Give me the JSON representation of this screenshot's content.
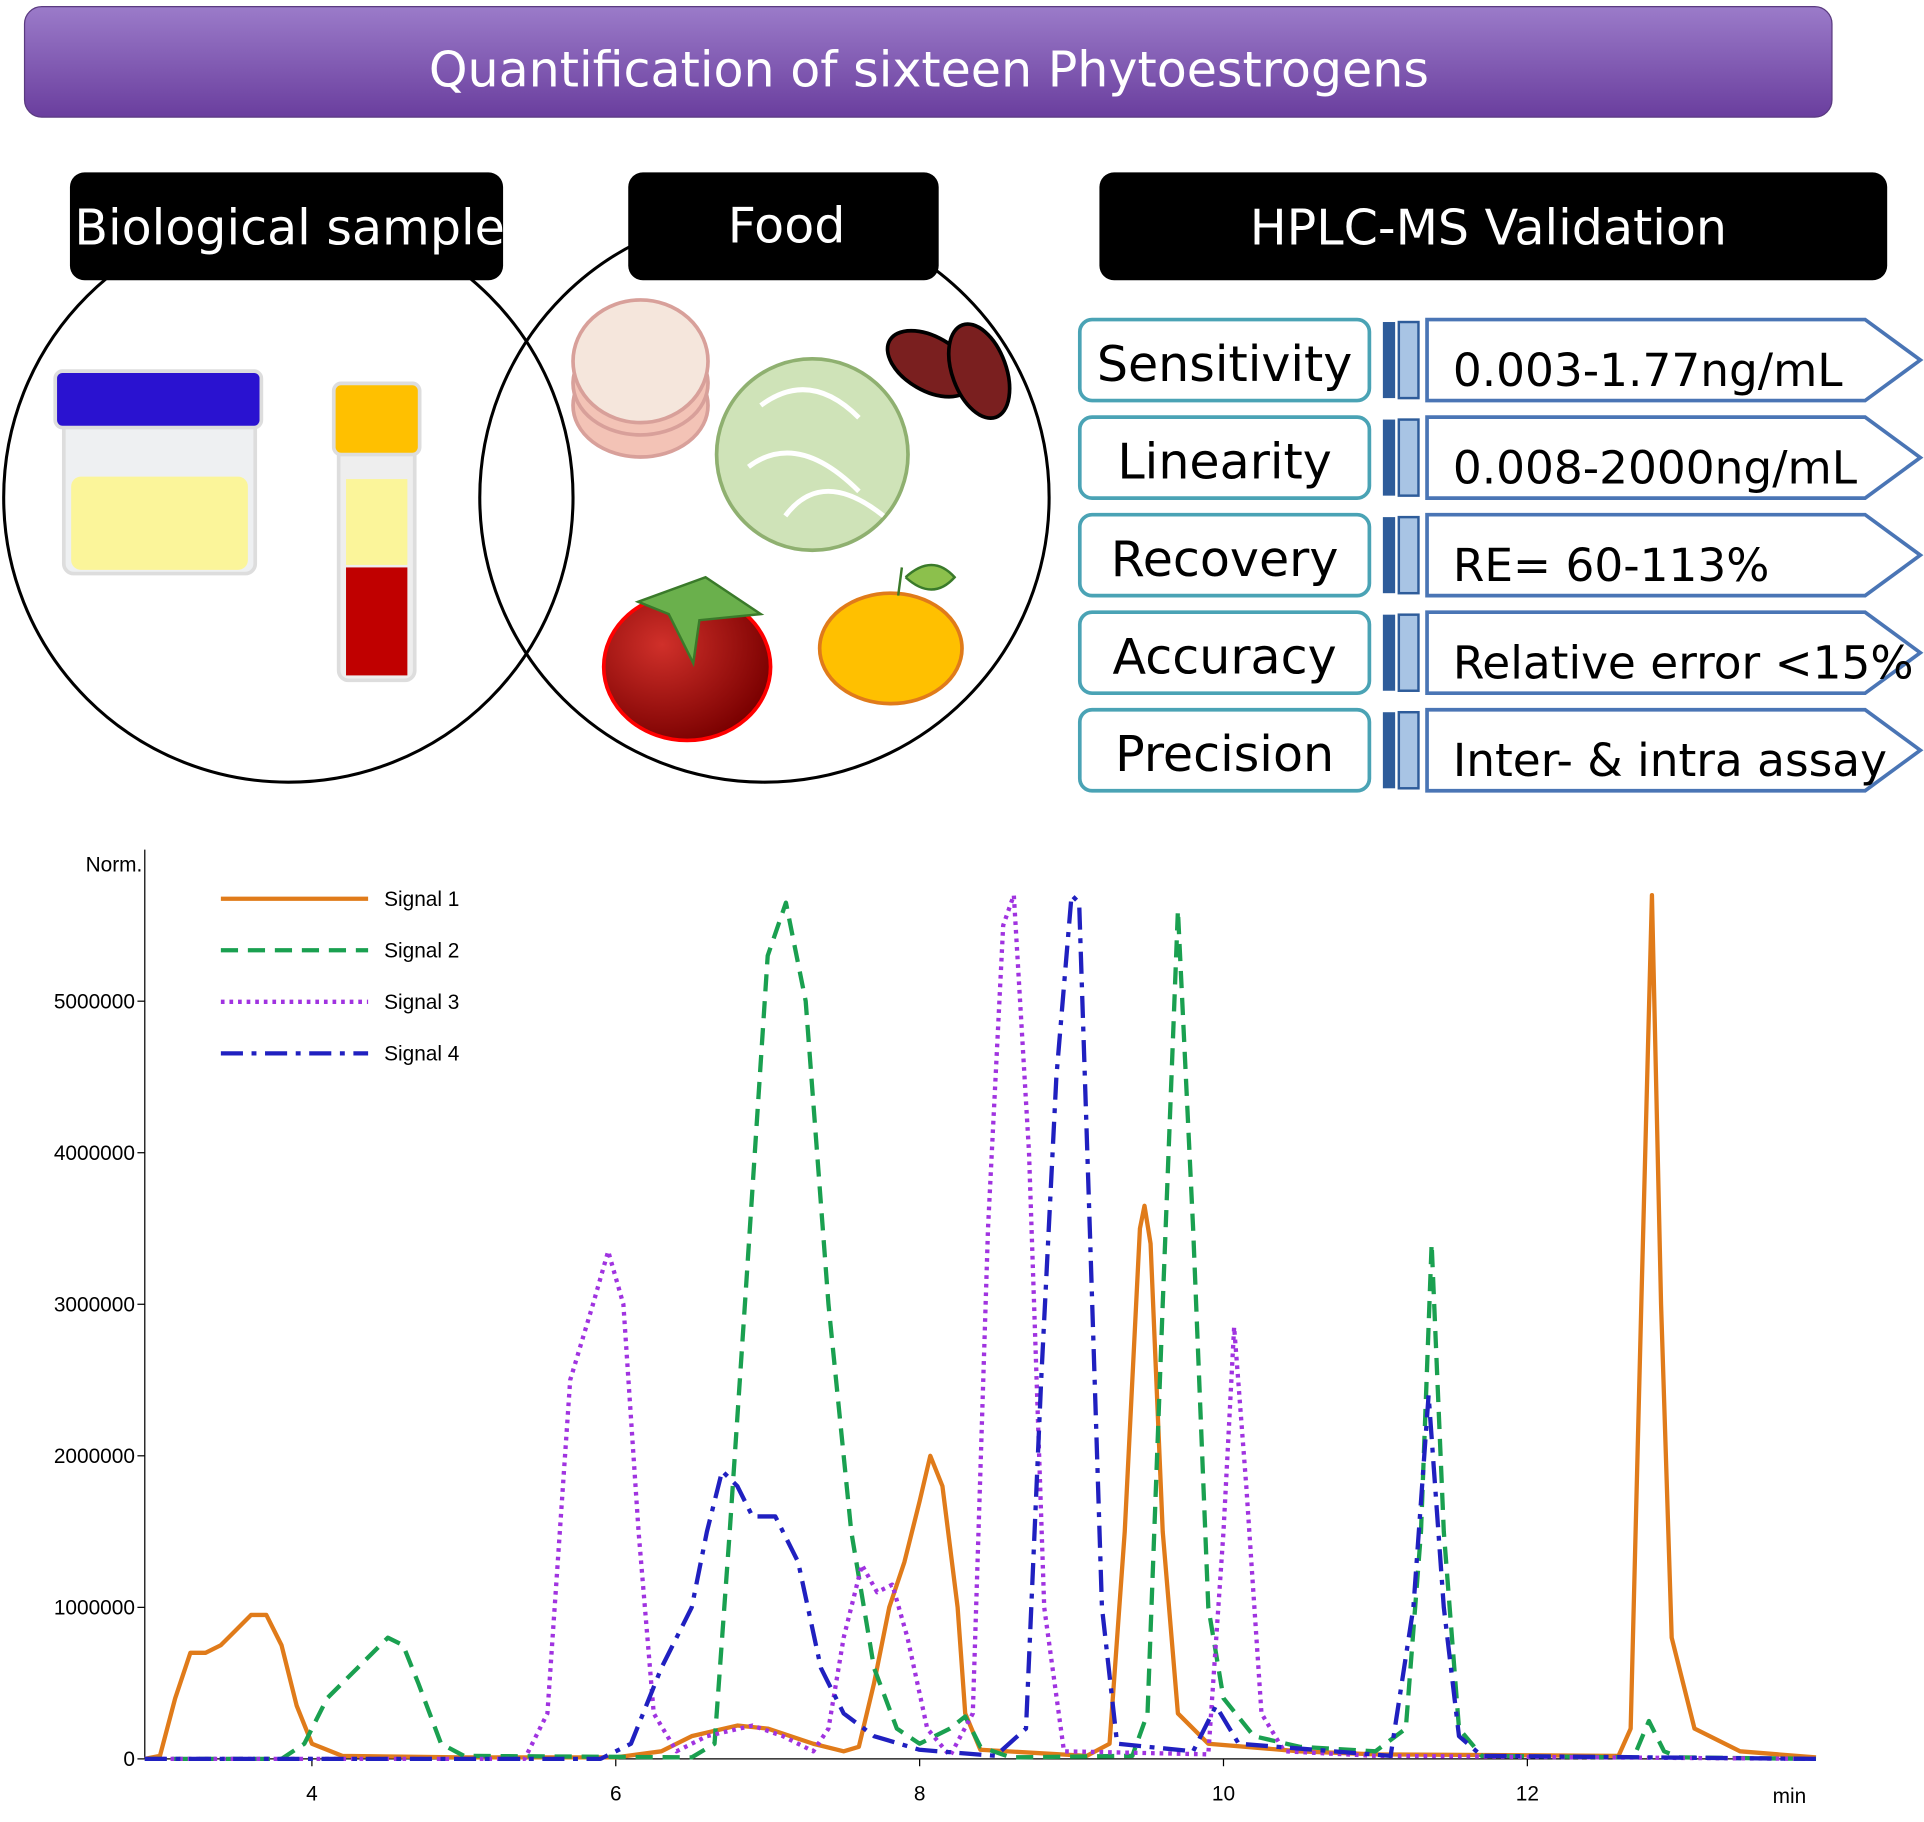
{
  "header": {
    "title": "Quantification of sixteen Phytoestrogens"
  },
  "panels": [
    {
      "label": "Biological sample"
    },
    {
      "label": "Food"
    }
  ],
  "validation": {
    "title": "HPLC-MS Validation",
    "rows": [
      {
        "parameter": "Sensitivity",
        "value": "0.003-1.77ng/mL"
      },
      {
        "parameter": "Linearity",
        "value": "0.008-2000ng/mL"
      },
      {
        "parameter": "Recovery",
        "value": "RE= 60-113%"
      },
      {
        "parameter": "Accuracy",
        "value": "Relative error <15%"
      },
      {
        "parameter": "Precision",
        "value": "Inter- & intra assay"
      }
    ]
  },
  "chart_data": {
    "type": "line",
    "y_label": "Norm.",
    "x_label": "min",
    "xlim": [
      2.9,
      13.9
    ],
    "ylim": [
      0,
      6000000
    ],
    "xticks": [
      4,
      6,
      8,
      10,
      12
    ],
    "yticks": [
      0,
      1000000,
      2000000,
      3000000,
      4000000,
      5000000
    ],
    "legend": "upper left",
    "series": [
      {
        "name": "Signal 1",
        "color": "#e07b1a",
        "dash": "solid",
        "x": [
          2.9,
          3.0,
          3.1,
          3.2,
          3.3,
          3.4,
          3.5,
          3.6,
          3.7,
          3.8,
          3.9,
          4.0,
          4.2,
          5.0,
          6.0,
          6.3,
          6.5,
          6.8,
          7.0,
          7.3,
          7.5,
          7.6,
          7.7,
          7.8,
          7.9,
          8.0,
          8.07,
          8.15,
          8.25,
          8.3,
          8.4,
          9.1,
          9.25,
          9.35,
          9.45,
          9.48,
          9.52,
          9.6,
          9.7,
          9.9,
          10.5,
          11.0,
          12.6,
          12.68,
          12.75,
          12.82,
          12.88,
          12.95,
          13.1,
          13.4,
          13.9
        ],
        "values": [
          0,
          20000,
          400000,
          700000,
          700000,
          750000,
          850000,
          950000,
          950000,
          750000,
          350000,
          100000,
          20000,
          10000,
          10000,
          50000,
          150000,
          220000,
          200000,
          100000,
          50000,
          80000,
          500000,
          1000000,
          1300000,
          1700000,
          2000000,
          1800000,
          1000000,
          300000,
          60000,
          20000,
          100000,
          1500000,
          3500000,
          3650000,
          3400000,
          1500000,
          300000,
          100000,
          50000,
          30000,
          20000,
          200000,
          3000000,
          5700000,
          3000000,
          800000,
          200000,
          50000,
          10000
        ]
      },
      {
        "name": "Signal 2",
        "color": "#1aa050",
        "dash": "dashed",
        "x": [
          2.9,
          3.8,
          3.95,
          4.1,
          4.3,
          4.5,
          4.6,
          4.7,
          4.85,
          5.0,
          6.5,
          6.65,
          6.75,
          6.85,
          7.0,
          7.12,
          7.25,
          7.4,
          7.55,
          7.7,
          7.85,
          8.0,
          8.2,
          8.3,
          8.4,
          8.6,
          9.4,
          9.5,
          9.6,
          9.7,
          9.8,
          9.9,
          10.0,
          10.2,
          10.5,
          11.0,
          11.2,
          11.3,
          11.37,
          11.45,
          11.55,
          11.7,
          12.7,
          12.8,
          12.9,
          13.0,
          13.9
        ],
        "values": [
          0,
          0,
          100000,
          400000,
          600000,
          800000,
          750000,
          500000,
          100000,
          20000,
          10000,
          100000,
          1500000,
          3000000,
          5300000,
          5650000,
          5000000,
          3000000,
          1500000,
          600000,
          200000,
          100000,
          200000,
          280000,
          80000,
          10000,
          20000,
          300000,
          3000000,
          5600000,
          3500000,
          1000000,
          400000,
          150000,
          80000,
          50000,
          200000,
          1500000,
          3400000,
          1500000,
          200000,
          20000,
          10000,
          250000,
          50000,
          10000,
          0
        ]
      },
      {
        "name": "Signal 3",
        "color": "#a033e0",
        "dash": "dotted",
        "x": [
          2.9,
          5.4,
          5.55,
          5.7,
          5.85,
          5.95,
          6.05,
          6.15,
          6.25,
          6.4,
          6.6,
          6.9,
          7.1,
          7.3,
          7.4,
          7.5,
          7.62,
          7.72,
          7.82,
          7.92,
          8.05,
          8.2,
          8.35,
          8.45,
          8.55,
          8.62,
          8.72,
          8.82,
          8.95,
          9.9,
          10.0,
          10.07,
          10.15,
          10.25,
          10.4,
          11.0,
          13.9
        ],
        "values": [
          0,
          0,
          300000,
          2500000,
          3000000,
          3350000,
          3000000,
          1500000,
          300000,
          50000,
          150000,
          220000,
          150000,
          50000,
          200000,
          800000,
          1280000,
          1100000,
          1150000,
          800000,
          200000,
          20000,
          300000,
          3500000,
          5500000,
          5700000,
          4000000,
          1000000,
          50000,
          30000,
          1500000,
          2850000,
          1800000,
          300000,
          50000,
          20000,
          0
        ]
      },
      {
        "name": "Signal 4",
        "color": "#2020c0",
        "dash": "dashdot",
        "x": [
          2.9,
          5.9,
          6.1,
          6.3,
          6.5,
          6.6,
          6.7,
          6.8,
          6.9,
          7.05,
          7.2,
          7.35,
          7.5,
          7.7,
          8.0,
          8.5,
          8.7,
          8.8,
          8.9,
          9.0,
          9.05,
          9.12,
          9.2,
          9.3,
          9.8,
          9.95,
          10.1,
          11.1,
          11.25,
          11.35,
          11.45,
          11.55,
          11.7,
          13.9
        ],
        "values": [
          0,
          0,
          100000,
          600000,
          1000000,
          1500000,
          1900000,
          1800000,
          1600000,
          1600000,
          1300000,
          600000,
          300000,
          150000,
          60000,
          20000,
          200000,
          2500000,
          4500000,
          5700000,
          5650000,
          3500000,
          1000000,
          100000,
          50000,
          350000,
          100000,
          20000,
          1000000,
          2400000,
          1000000,
          150000,
          20000,
          0
        ]
      }
    ]
  }
}
